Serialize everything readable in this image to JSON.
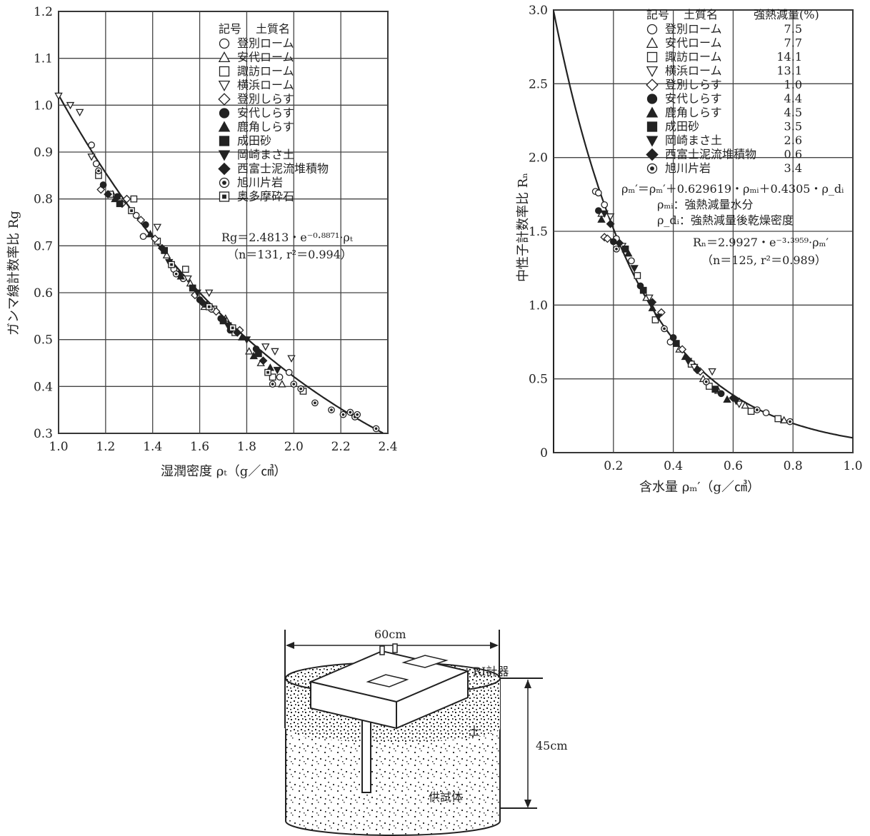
{
  "chart_data": [
    {
      "type": "scatter",
      "id": "gamma",
      "xlim": [
        1.0,
        2.4
      ],
      "ylim": [
        0.3,
        1.2
      ],
      "xticks": [
        "1.0",
        "1.2",
        "1.4",
        "1.6",
        "1.8",
        "2.0",
        "2.2",
        "2.4"
      ],
      "yticks": [
        "0.3",
        "0.4",
        "0.5",
        "0.6",
        "0.7",
        "0.8",
        "0.9",
        "1.0",
        "1.1",
        "1.2"
      ],
      "xlabel": "湿潤密度 ρₜ（g／㎤）",
      "ylabel": "ガンマ線計数率比 Rg",
      "grid": true,
      "legend_header_symbol": "記号",
      "legend_header_name": "土質名",
      "legend": [
        {
          "symbol": "○",
          "name": "登別ローム"
        },
        {
          "symbol": "△",
          "name": "安代ローム"
        },
        {
          "symbol": "□",
          "name": "諏訪ローム"
        },
        {
          "symbol": "▽",
          "name": "横浜ローム"
        },
        {
          "symbol": "◇",
          "name": "登別しらす"
        },
        {
          "symbol": "●",
          "name": "安代しらす"
        },
        {
          "symbol": "▲",
          "name": "鹿角しらす"
        },
        {
          "symbol": "■",
          "name": "成田砂"
        },
        {
          "symbol": "▼",
          "name": "岡崎まさ土"
        },
        {
          "symbol": "◆",
          "name": "西富士泥流堆積物"
        },
        {
          "symbol": "◉",
          "name": "旭川片岩"
        },
        {
          "symbol": "▣",
          "name": "奥多摩砕石"
        }
      ],
      "equation": "Rg＝2.4813・e⁻⁰·⁸⁸⁷¹·ρₜ",
      "stats": "（n＝131, r²＝0.994）",
      "fit": {
        "a": 2.4813,
        "b": -0.8871
      },
      "series": [
        {
          "symbol": "○",
          "points": [
            [
              1.14,
              0.915
            ],
            [
              1.16,
              0.875
            ],
            [
              1.33,
              0.765
            ],
            [
              1.36,
              0.72
            ],
            [
              1.49,
              0.65
            ],
            [
              1.53,
              0.63
            ],
            [
              1.94,
              0.42
            ],
            [
              1.98,
              0.43
            ]
          ]
        },
        {
          "symbol": "△",
          "points": [
            [
              1.23,
              0.81
            ],
            [
              1.46,
              0.68
            ],
            [
              1.56,
              0.62
            ],
            [
              1.62,
              0.57
            ],
            [
              1.71,
              0.545
            ],
            [
              1.81,
              0.475
            ],
            [
              1.86,
              0.45
            ],
            [
              1.95,
              0.405
            ]
          ]
        },
        {
          "symbol": "□",
          "points": [
            [
              1.17,
              0.85
            ],
            [
              1.22,
              0.81
            ],
            [
              1.32,
              0.8
            ],
            [
              1.42,
              0.71
            ],
            [
              1.54,
              0.65
            ],
            [
              1.66,
              0.565
            ],
            [
              1.75,
              0.515
            ],
            [
              1.91,
              0.42
            ],
            [
              2.04,
              0.39
            ]
          ]
        },
        {
          "symbol": "▽",
          "points": [
            [
              1.0,
              1.02
            ],
            [
              1.05,
              1.0
            ],
            [
              1.09,
              0.985
            ],
            [
              1.14,
              0.89
            ],
            [
              1.42,
              0.74
            ],
            [
              1.55,
              0.63
            ],
            [
              1.64,
              0.6
            ],
            [
              1.88,
              0.485
            ],
            [
              1.92,
              0.475
            ],
            [
              1.99,
              0.46
            ]
          ]
        },
        {
          "symbol": "◇",
          "points": [
            [
              1.18,
              0.82
            ],
            [
              1.27,
              0.79
            ],
            [
              1.29,
              0.8
            ],
            [
              1.35,
              0.755
            ],
            [
              1.41,
              0.715
            ],
            [
              1.58,
              0.595
            ],
            [
              1.67,
              0.56
            ],
            [
              1.77,
              0.52
            ]
          ]
        },
        {
          "symbol": "●",
          "points": [
            [
              1.19,
              0.83
            ],
            [
              1.25,
              0.805
            ],
            [
              1.37,
              0.745
            ],
            [
              1.51,
              0.64
            ],
            [
              1.6,
              0.585
            ],
            [
              1.69,
              0.545
            ],
            [
              1.73,
              0.52
            ],
            [
              1.84,
              0.48
            ]
          ]
        },
        {
          "symbol": "▲",
          "points": [
            [
              1.24,
              0.8
            ],
            [
              1.39,
              0.725
            ],
            [
              1.52,
              0.635
            ],
            [
              1.63,
              0.575
            ],
            [
              1.78,
              0.505
            ],
            [
              1.83,
              0.465
            ],
            [
              1.9,
              0.44
            ]
          ]
        },
        {
          "symbol": "■",
          "points": [
            [
              1.26,
              0.79
            ],
            [
              1.45,
              0.69
            ],
            [
              1.57,
              0.61
            ],
            [
              1.7,
              0.54
            ],
            [
              1.85,
              0.47
            ]
          ]
        },
        {
          "symbol": "▼",
          "points": [
            [
              1.47,
              0.665
            ],
            [
              1.59,
              0.6
            ],
            [
              1.72,
              0.53
            ],
            [
              1.8,
              0.5
            ],
            [
              1.93,
              0.435
            ]
          ]
        },
        {
          "symbol": "◆",
          "points": [
            [
              1.21,
              0.81
            ],
            [
              1.44,
              0.695
            ],
            [
              1.61,
              0.58
            ],
            [
              1.76,
              0.515
            ],
            [
              1.87,
              0.455
            ]
          ]
        },
        {
          "symbol": "◉",
          "points": [
            [
              1.17,
              0.86
            ],
            [
              1.5,
              0.64
            ],
            [
              1.65,
              0.565
            ],
            [
              1.91,
              0.405
            ],
            [
              2.0,
              0.405
            ],
            [
              2.03,
              0.395
            ],
            [
              2.09,
              0.365
            ],
            [
              2.16,
              0.35
            ],
            [
              2.21,
              0.34
            ],
            [
              2.24,
              0.345
            ],
            [
              2.26,
              0.335
            ],
            [
              2.27,
              0.34
            ],
            [
              2.35,
              0.31
            ]
          ]
        },
        {
          "symbol": "▣",
          "points": [
            [
              1.31,
              0.775
            ],
            [
              1.48,
              0.66
            ],
            [
              1.64,
              0.57
            ],
            [
              1.74,
              0.525
            ],
            [
              1.89,
              0.43
            ]
          ]
        }
      ]
    },
    {
      "type": "scatter",
      "id": "neutron",
      "xlim": [
        0,
        1.0
      ],
      "ylim": [
        0,
        3.0
      ],
      "xticks": [
        "0.2",
        "0.4",
        "0.6",
        "0.8",
        "1.0"
      ],
      "xtick_values": [
        0.2,
        0.4,
        0.6,
        0.8,
        1.0
      ],
      "yticks": [
        "0",
        "0.5",
        "1.0",
        "1.5",
        "2.0",
        "2.5",
        "3.0"
      ],
      "ytick_values": [
        0,
        0.5,
        1.0,
        1.5,
        2.0,
        2.5,
        3.0
      ],
      "xlabel": "含水量 ρₘ′（g／㎤）",
      "ylabel": "中性子計数率比 Rₙ",
      "grid": true,
      "legend_header_symbol": "記号",
      "legend_header_name": "土質名",
      "legend_header_value": "強熱減量(%)",
      "legend": [
        {
          "symbol": "○",
          "name": "登別ローム",
          "value": "7.5"
        },
        {
          "symbol": "△",
          "name": "安代ローム",
          "value": "7.7"
        },
        {
          "symbol": "□",
          "name": "諏訪ローム",
          "value": "14.1"
        },
        {
          "symbol": "▽",
          "name": "横浜ローム",
          "value": "13.1"
        },
        {
          "symbol": "◇",
          "name": "登別しらす",
          "value": "1.0"
        },
        {
          "symbol": "●",
          "name": "安代しらす",
          "value": "4.4"
        },
        {
          "symbol": "▲",
          "name": "鹿角しらす",
          "value": "4.5"
        },
        {
          "symbol": "■",
          "name": "成田砂",
          "value": "3.5"
        },
        {
          "symbol": "▼",
          "name": "岡崎まさ土",
          "value": "2.6"
        },
        {
          "symbol": "◆",
          "name": "西富士泥流堆積物",
          "value": "0.6"
        },
        {
          "symbol": "◉",
          "name": "旭川片岩",
          "value": "3.4"
        }
      ],
      "formula": "ρₘ′＝ρₘ′＋0.629619・ρₘᵢ＋0.4305・ρ_dᵢ",
      "formula_note1": "ρₘᵢ：強熱減量水分",
      "formula_note2": "ρ_dᵢ：強熱減量後乾燥密度",
      "equation": "Rₙ＝2.9927・e⁻³·³⁹⁵⁹·ρₘ′",
      "stats": "（n＝125, r²＝0.989）",
      "fit": {
        "a": 2.9927,
        "b": -3.3959
      },
      "series": [
        {
          "symbol": "○",
          "points": [
            [
              0.14,
              1.77
            ],
            [
              0.15,
              1.76
            ],
            [
              0.17,
              1.68
            ],
            [
              0.21,
              1.45
            ],
            [
              0.26,
              1.3
            ],
            [
              0.39,
              0.75
            ],
            [
              0.71,
              0.27
            ]
          ]
        },
        {
          "symbol": "△",
          "points": [
            [
              0.16,
              1.62
            ],
            [
              0.31,
              1.05
            ],
            [
              0.42,
              0.7
            ],
            [
              0.5,
              0.5
            ],
            [
              0.55,
              0.42
            ],
            [
              0.64,
              0.32
            ],
            [
              0.77,
              0.22
            ]
          ]
        },
        {
          "symbol": "□",
          "points": [
            [
              0.28,
              1.2
            ],
            [
              0.34,
              0.9
            ],
            [
              0.46,
              0.6
            ],
            [
              0.52,
              0.45
            ],
            [
              0.66,
              0.28
            ],
            [
              0.75,
              0.23
            ]
          ]
        },
        {
          "symbol": "▽",
          "points": [
            [
              0.19,
              1.6
            ],
            [
              0.23,
              1.4
            ],
            [
              0.32,
              1.05
            ],
            [
              0.47,
              0.58
            ],
            [
              0.53,
              0.55
            ],
            [
              0.62,
              0.33
            ]
          ]
        },
        {
          "symbol": "◇",
          "points": [
            [
              0.17,
              1.46
            ],
            [
              0.18,
              1.45
            ],
            [
              0.36,
              0.95
            ],
            [
              0.43,
              0.7
            ],
            [
              0.49,
              0.55
            ]
          ]
        },
        {
          "symbol": "●",
          "points": [
            [
              0.15,
              1.64
            ],
            [
              0.2,
              1.43
            ],
            [
              0.29,
              1.13
            ],
            [
              0.4,
              0.78
            ],
            [
              0.56,
              0.4
            ]
          ]
        },
        {
          "symbol": "▲",
          "points": [
            [
              0.16,
              1.58
            ],
            [
              0.25,
              1.35
            ],
            [
              0.33,
              0.98
            ],
            [
              0.44,
              0.65
            ],
            [
              0.58,
              0.36
            ]
          ]
        },
        {
          "symbol": "■",
          "points": [
            [
              0.24,
              1.38
            ],
            [
              0.3,
              1.1
            ],
            [
              0.41,
              0.74
            ],
            [
              0.54,
              0.43
            ]
          ]
        },
        {
          "symbol": "▼",
          "points": [
            [
              0.17,
              1.62
            ],
            [
              0.27,
              1.25
            ],
            [
              0.35,
              0.92
            ],
            [
              0.45,
              0.62
            ],
            [
              0.61,
              0.35
            ]
          ]
        },
        {
          "symbol": "◆",
          "points": [
            [
              0.19,
              1.55
            ],
            [
              0.22,
              1.42
            ],
            [
              0.33,
              1.02
            ],
            [
              0.48,
              0.56
            ],
            [
              0.6,
              0.37
            ]
          ]
        },
        {
          "symbol": "◉",
          "points": [
            [
              0.21,
              1.38
            ],
            [
              0.37,
              0.84
            ],
            [
              0.51,
              0.48
            ],
            [
              0.68,
              0.29
            ],
            [
              0.79,
              0.21
            ]
          ]
        }
      ]
    }
  ],
  "diagram": {
    "width_label": "60cm",
    "height_label": "45cm",
    "device_label": "RI計器",
    "soil_label": "土",
    "specimen_label": "供試体"
  }
}
